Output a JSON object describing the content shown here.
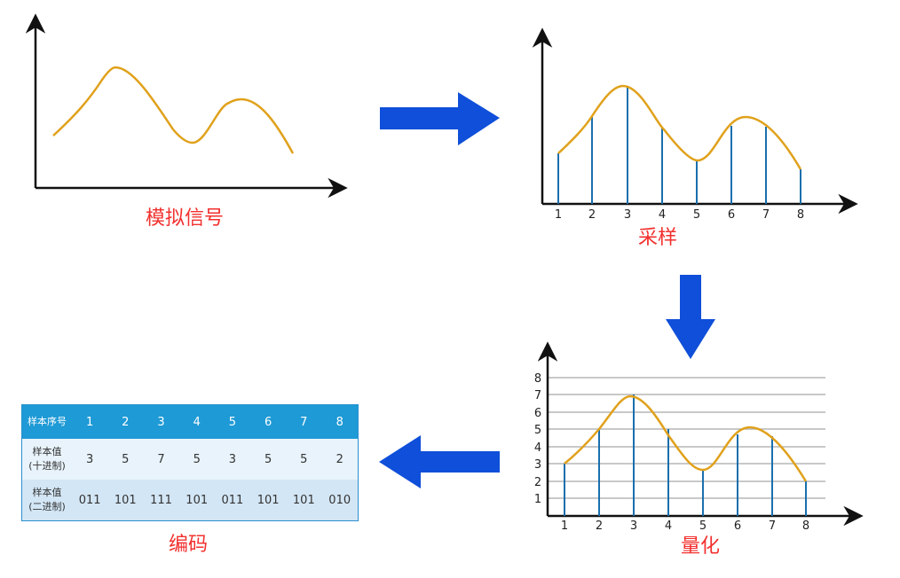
{
  "captions": {
    "analog": "模拟信号",
    "sampling": "采样",
    "quantization": "量化",
    "encoding": "编码"
  },
  "sample_ticks": [
    "1",
    "2",
    "3",
    "4",
    "5",
    "6",
    "7",
    "8"
  ],
  "level_ticks": [
    "1",
    "2",
    "3",
    "4",
    "5",
    "6",
    "7",
    "8"
  ],
  "table": {
    "header_label": "样本序号",
    "header_values": [
      "1",
      "2",
      "3",
      "4",
      "5",
      "6",
      "7",
      "8"
    ],
    "decimal_label_1": "样本值",
    "decimal_label_2": "(十进制)",
    "decimal_values": [
      "3",
      "5",
      "7",
      "5",
      "3",
      "5",
      "5",
      "2"
    ],
    "binary_label_1": "样本值",
    "binary_label_2": "(二进制)",
    "binary_values": [
      "011",
      "101",
      "111",
      "101",
      "011",
      "101",
      "101",
      "010"
    ]
  },
  "colors": {
    "curve": "#e0a11b",
    "sample_line": "#1a6fae",
    "arrow": "#0f4fd9",
    "caption": "#f2302e",
    "grid": "#b5b5b5",
    "table_header": "#1e9ad6"
  }
}
